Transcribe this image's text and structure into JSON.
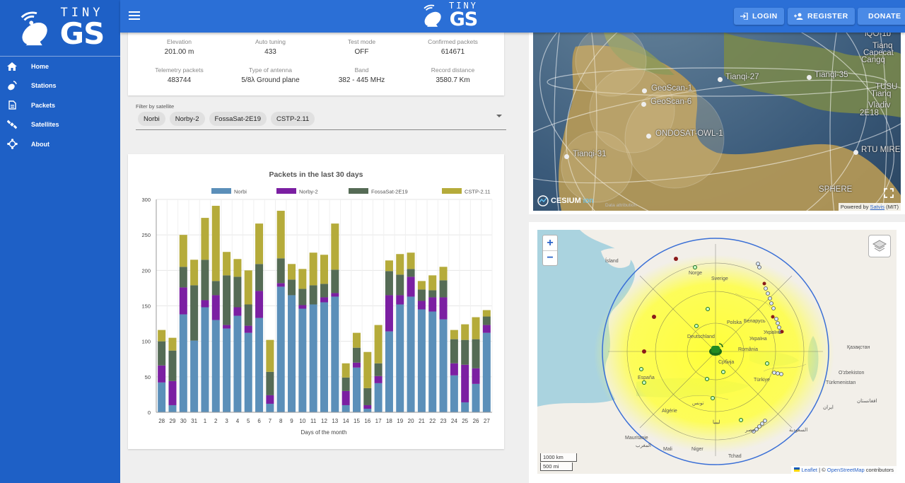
{
  "sidebar": {
    "items": [
      {
        "label": "Home",
        "icon": "home-icon"
      },
      {
        "label": "Stations",
        "icon": "station-icon"
      },
      {
        "label": "Packets",
        "icon": "document-icon"
      },
      {
        "label": "Satellites",
        "icon": "satellite-icon"
      },
      {
        "label": "About",
        "icon": "about-icon"
      }
    ]
  },
  "brand": {
    "tiny": "TINY",
    "gs": "GS"
  },
  "topbar": {
    "login": "LOGIN",
    "register": "REGISTER",
    "donate": "DONATE"
  },
  "stats": [
    {
      "label": "Elevation",
      "value": "201.00 m"
    },
    {
      "label": "Auto tuning",
      "value": "433"
    },
    {
      "label": "Test mode",
      "value": "OFF"
    },
    {
      "label": "Confirmed packets",
      "value": "614671"
    },
    {
      "label": "Telemetry packets",
      "value": "483744"
    },
    {
      "label": "Type of antenna",
      "value": "5/8λ Ground plane"
    },
    {
      "label": "Band",
      "value": "382 - 445 MHz"
    },
    {
      "label": "Record distance",
      "value": "3580.7 Km"
    }
  ],
  "filter": {
    "label": "Filter by satellite",
    "chips": [
      "Norbi",
      "Norby-2",
      "FossaSat-2E19",
      "CSTP-2.11"
    ]
  },
  "chart_data": {
    "type": "bar",
    "stacked": true,
    "title": "Packets in the last 30 days",
    "xlabel": "Days of the month",
    "ylabel": "",
    "ylim": [
      0,
      300
    ],
    "yticks": [
      0,
      50,
      100,
      150,
      200,
      250,
      300
    ],
    "legend_position": "top",
    "grid": true,
    "categories": [
      "28",
      "29",
      "30",
      "31",
      "1",
      "2",
      "3",
      "4",
      "5",
      "6",
      "7",
      "8",
      "9",
      "10",
      "11",
      "12",
      "13",
      "14",
      "15",
      "16",
      "17",
      "18",
      "19",
      "20",
      "21",
      "22",
      "23",
      "24",
      "25",
      "26",
      "27"
    ],
    "series": [
      {
        "name": "Norbi",
        "color": "#5b8fb9",
        "values": [
          42,
          10,
          138,
          101,
          148,
          130,
          118,
          136,
          112,
          133,
          12,
          177,
          165,
          146,
          152,
          155,
          163,
          10,
          63,
          5,
          41,
          114,
          152,
          163,
          145,
          142,
          131,
          52,
          14,
          40,
          112
        ]
      },
      {
        "name": "Norby-2",
        "color": "#7b1fa2",
        "values": [
          24,
          34,
          38,
          0,
          10,
          35,
          5,
          12,
          10,
          38,
          12,
          5,
          0,
          5,
          0,
          7,
          5,
          20,
          7,
          5,
          10,
          51,
          13,
          28,
          12,
          20,
          31,
          17,
          53,
          22,
          11
        ]
      },
      {
        "name": "FossaSat-2E19",
        "color": "#556b55",
        "values": [
          34,
          43,
          29,
          78,
          57,
          20,
          70,
          43,
          30,
          38,
          33,
          35,
          22,
          23,
          27,
          19,
          33,
          19,
          21,
          24,
          18,
          34,
          29,
          11,
          16,
          10,
          24,
          34,
          35,
          41,
          12
        ]
      },
      {
        "name": "CSTP-2.11",
        "color": "#b5ab3a",
        "values": [
          16,
          18,
          45,
          36,
          59,
          106,
          33,
          25,
          48,
          57,
          45,
          67,
          22,
          28,
          46,
          41,
          65,
          20,
          21,
          51,
          54,
          15,
          29,
          23,
          12,
          21,
          19,
          13,
          22,
          31,
          9
        ]
      }
    ]
  },
  "globe": {
    "labels": [
      "Tianqi-27",
      "Tianqi-35",
      "GeoScan-1",
      "GeoScan-6",
      "ONDOSAT-OWL-1",
      "Tianqi-31",
      "RTU MIRE",
      "Vladiv",
      "Tianq",
      "SPHERE",
      "TUSU",
      "2E18",
      "iQO-1b",
      "Capecat",
      "Cangq",
      "Tianq"
    ],
    "cesium": "CESIUM",
    "ion": "ion",
    "data_attr": "Data attribution",
    "powered_prefix": "Powered by",
    "powered_link": "Satvis",
    "powered_suffix": "(MIT)"
  },
  "map": {
    "zoom_in": "+",
    "zoom_out": "−",
    "scale_km": "1000 km",
    "scale_mi": "500 mi",
    "attr_leaflet": "Leaflet",
    "attr_sep": " | © ",
    "attr_osm": "OpenStreetMap",
    "attr_suffix": " contributors",
    "place_labels": [
      "Ísland",
      "España",
      "Algérie",
      "Mauritanie",
      "Mali",
      "Niger",
      "Tchad",
      "Қазақстан",
      "O'zbekiston",
      "Türkmenistan",
      "ایران",
      "افغانستان",
      "السعودية",
      "مصر",
      "ليبيا",
      "تونس",
      "Беларусь",
      "Україна",
      "Србија",
      "Türkiye",
      "Sverige",
      "România",
      "Polska",
      "Deutschland",
      "Norge",
      "المغرب",
      "Україна"
    ]
  }
}
